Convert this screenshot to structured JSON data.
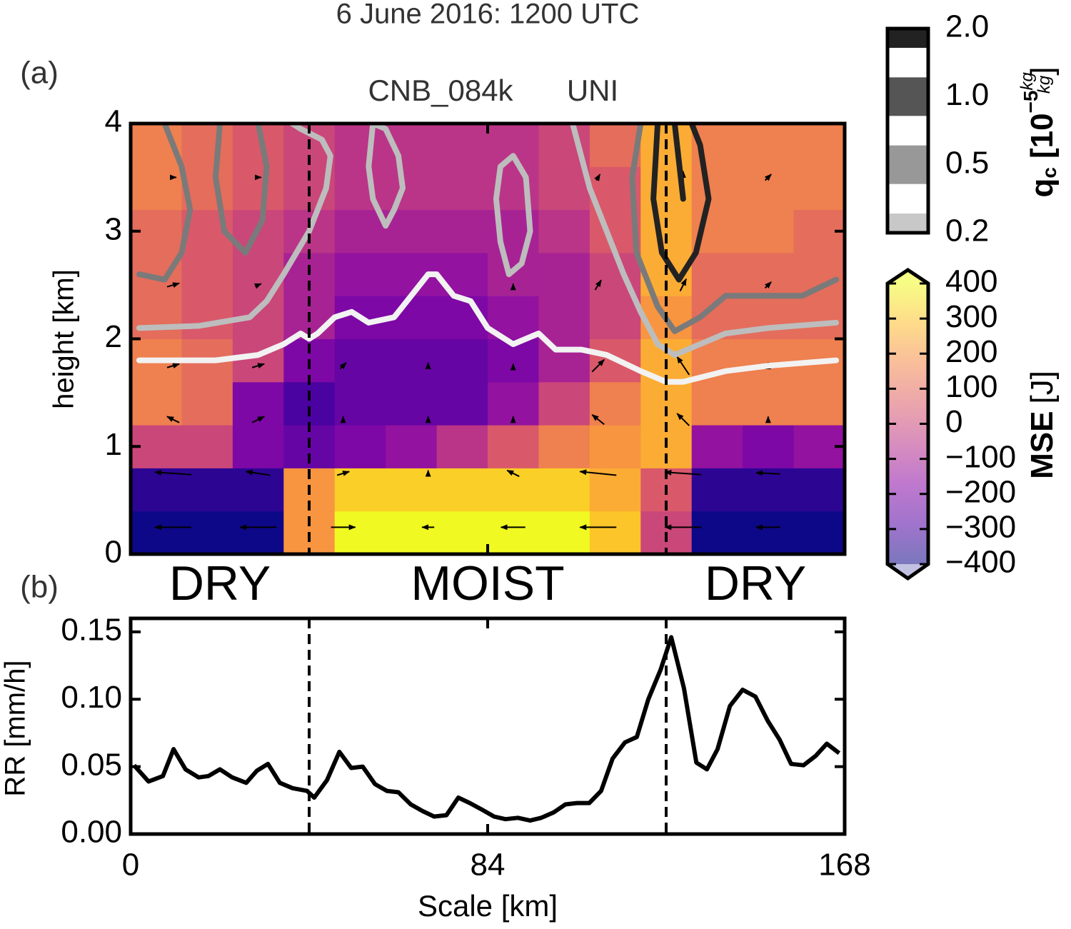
{
  "title": "6 June 2016: 1200 UTC",
  "chart_data": [
    {
      "type": "heatmap",
      "panel_label": "(a)",
      "title": "CNB_084k",
      "subtitle": "UNI",
      "ylabel": "height [km]",
      "xlim": [
        0,
        168
      ],
      "ylim": [
        0,
        4
      ],
      "xticks": [
        0,
        84,
        168
      ],
      "yticks": [
        0,
        1,
        2,
        3,
        4
      ],
      "boundaries": [
        42,
        126
      ],
      "region_labels": [
        "DRY",
        "MOIST",
        "DRY"
      ],
      "x_edges": [
        0,
        12,
        24,
        36,
        48,
        60,
        72,
        84,
        96,
        108,
        120,
        132,
        144,
        156,
        168
      ],
      "y_edges": [
        0,
        0.4,
        0.8,
        1.2,
        1.6,
        2.0,
        2.4,
        2.8,
        3.2,
        3.6,
        4.0
      ],
      "values": [
        [
          -400,
          -400,
          -400,
          200,
          400,
          400,
          400,
          400,
          400,
          300,
          0,
          -400,
          -400,
          -400
        ],
        [
          -350,
          -350,
          -350,
          200,
          320,
          320,
          320,
          320,
          320,
          250,
          50,
          -350,
          -350,
          -350
        ],
        [
          0,
          0,
          -200,
          -250,
          -200,
          -150,
          -50,
          50,
          150,
          200,
          250,
          -150,
          -200,
          -150
        ],
        [
          150,
          100,
          -200,
          -300,
          -250,
          -250,
          -250,
          -150,
          0,
          150,
          250,
          150,
          150,
          150
        ],
        [
          150,
          100,
          0,
          -200,
          -250,
          -250,
          -250,
          -200,
          -100,
          50,
          250,
          150,
          150,
          150
        ],
        [
          100,
          50,
          0,
          -100,
          -200,
          -200,
          -200,
          -150,
          -100,
          0,
          200,
          100,
          100,
          100
        ],
        [
          100,
          50,
          0,
          -100,
          -150,
          -150,
          -150,
          -100,
          -100,
          0,
          250,
          100,
          100,
          100
        ],
        [
          100,
          50,
          0,
          -50,
          -100,
          -100,
          -100,
          -100,
          -50,
          50,
          250,
          150,
          150,
          100
        ],
        [
          150,
          100,
          50,
          0,
          -50,
          -50,
          -50,
          -50,
          0,
          50,
          250,
          150,
          150,
          150
        ],
        [
          150,
          100,
          50,
          0,
          -50,
          -50,
          -50,
          -50,
          0,
          100,
          250,
          150,
          150,
          150
        ]
      ],
      "colormap": [
        "#0d0887",
        "#5302a3",
        "#8b0aa5",
        "#b83289",
        "#db5c68",
        "#f48849",
        "#febd2a",
        "#f0f921"
      ],
      "zlim": [
        -400,
        400
      ],
      "zticks": [
        {
          "value": -400,
          "label": "−400"
        },
        {
          "value": -300,
          "label": "−300"
        },
        {
          "value": -200,
          "label": "−200"
        },
        {
          "value": -100,
          "label": "−100"
        },
        0,
        100,
        200,
        300,
        400
      ],
      "zlabel": {
        "name": "MSE",
        "unit": "[J]"
      },
      "qc_colorbar": {
        "ticks": [
          0.2,
          0.5,
          {
            "value": 1,
            "label": "1.0"
          },
          {
            "value": 2,
            "label": "2.0"
          }
        ],
        "colors": [
          "#c8c8c8",
          "#989898",
          "#555555",
          "#222222"
        ],
        "label": {
          "symbol": "q",
          "subscript": "c",
          "open": "[10",
          "exponent": "−5",
          "numerator": "kg",
          "denominator": "kg",
          "close": "]"
        }
      },
      "contours": [
        {
          "level": 0,
          "color": "#f2f2f2",
          "x": [
            2,
            20,
            30,
            36,
            40,
            42,
            44,
            48,
            52,
            56,
            62,
            64,
            70,
            72,
            76,
            80,
            84,
            90,
            96,
            100,
            106,
            112,
            120,
            126,
            130,
            140,
            150,
            166
          ],
          "y": [
            1.8,
            1.8,
            1.85,
            1.95,
            2.05,
            2.0,
            2.05,
            2.2,
            2.25,
            2.15,
            2.2,
            2.3,
            2.6,
            2.6,
            2.4,
            2.35,
            2.1,
            1.95,
            2.05,
            1.9,
            1.9,
            1.85,
            1.7,
            1.6,
            1.6,
            1.7,
            1.75,
            1.8
          ]
        },
        {
          "level": 0.2,
          "color": "#bdbdbd",
          "x": [
            2,
            16,
            28,
            32,
            36,
            42,
            46,
            47,
            45,
            40,
            38,
            null,
            57,
            60,
            63,
            64,
            62,
            60,
            57,
            56,
            57,
            null,
            87,
            90,
            93,
            94,
            92,
            89,
            87,
            86,
            87,
            null,
            104,
            108,
            112,
            116,
            120,
            124,
            128,
            134,
            140,
            150,
            166
          ],
          "y": [
            2.1,
            2.12,
            2.2,
            2.35,
            2.6,
            3.0,
            3.4,
            3.7,
            3.85,
            3.95,
            4.0,
            null,
            4.0,
            3.95,
            3.7,
            3.4,
            3.2,
            3.05,
            3.3,
            3.6,
            4.0,
            null,
            3.6,
            3.7,
            3.5,
            3.0,
            2.7,
            2.6,
            2.9,
            3.3,
            3.6,
            null,
            4.0,
            3.4,
            3.0,
            2.6,
            2.25,
            1.95,
            1.85,
            1.95,
            2.05,
            2.1,
            2.15
          ]
        },
        {
          "level": 0.5,
          "color": "#7a7a7a",
          "x": [
            2,
            8,
            12,
            14,
            12,
            8,
            null,
            21,
            20,
            22,
            27,
            31,
            32,
            30,
            null,
            120,
            118,
            119,
            124,
            128,
            134,
            140,
            150,
            158,
            166
          ],
          "y": [
            2.6,
            2.55,
            2.8,
            3.2,
            3.6,
            4.0,
            null,
            4.0,
            3.5,
            3.0,
            2.8,
            3.1,
            3.6,
            4.0,
            null,
            4.0,
            3.5,
            2.8,
            2.3,
            2.07,
            2.2,
            2.4,
            2.4,
            2.4,
            2.55
          ]
        },
        {
          "level": 2,
          "color": "#222222",
          "x": [
            124,
            123,
            125,
            129,
            133,
            136,
            134,
            132,
            null,
            128,
            130
          ],
          "y": [
            4.0,
            3.3,
            2.8,
            2.55,
            2.8,
            3.3,
            3.8,
            4.0,
            null,
            4.0,
            3.3
          ]
        }
      ],
      "quiver": {
        "x": [
          10,
          30,
          50,
          70,
          90,
          110,
          130,
          150,
          10,
          30,
          50,
          70,
          90,
          110,
          130,
          150,
          10,
          30,
          50,
          70,
          90,
          110,
          130,
          150,
          10,
          30,
          50,
          70,
          90,
          110,
          130,
          150,
          10,
          30,
          50,
          70,
          90,
          110,
          130,
          150,
          10,
          30,
          50,
          70,
          90,
          110,
          130,
          150
        ],
        "y": [
          0.25,
          0.25,
          0.25,
          0.25,
          0.25,
          0.25,
          0.25,
          0.25,
          0.75,
          0.75,
          0.75,
          0.75,
          0.75,
          0.75,
          0.75,
          0.75,
          1.25,
          1.25,
          1.25,
          1.25,
          1.25,
          1.25,
          1.25,
          1.25,
          1.75,
          1.75,
          1.75,
          1.75,
          1.75,
          1.75,
          1.75,
          1.75,
          2.5,
          2.5,
          2.5,
          2.5,
          2.5,
          2.5,
          2.5,
          2.5,
          3.5,
          3.5,
          3.5,
          3.5,
          3.5,
          3.5,
          3.5,
          3.5
        ],
        "u": [
          -3,
          -3,
          2,
          -1,
          -2,
          -3,
          -3,
          -2,
          -3,
          -2,
          1,
          0,
          -1,
          -3,
          -3,
          -2,
          -1,
          1,
          0,
          0,
          0,
          -1,
          -1,
          0,
          1,
          1,
          0.5,
          0,
          0,
          1,
          -1,
          0,
          1,
          0.5,
          0,
          0,
          0,
          0.5,
          0.5,
          0.5,
          0.5,
          0.5,
          0,
          0,
          0,
          0.3,
          0,
          0.5
        ],
        "v": [
          0,
          0,
          0,
          0,
          0,
          0,
          0,
          0,
          0.2,
          0.3,
          0.3,
          0.5,
          0.5,
          0.3,
          0.2,
          0.1,
          0.5,
          0.5,
          0.5,
          0.5,
          0.5,
          0.8,
          1,
          0.5,
          0.3,
          0.3,
          0.5,
          0.5,
          0.3,
          1,
          1.5,
          0.5,
          0.3,
          0.2,
          0,
          0,
          0.2,
          0.8,
          1,
          0.5,
          0,
          0,
          0,
          0,
          0,
          0.5,
          1,
          0.5
        ]
      }
    },
    {
      "type": "line",
      "panel_label": "(b)",
      "xlabel": "Scale [km]",
      "ylabel": "RR [mm/h]",
      "xlim": [
        0,
        168
      ],
      "ylim": [
        0,
        0.16
      ],
      "xticks": [
        0,
        84,
        168
      ],
      "yticks": [
        {
          "value": 0,
          "label": "0.00"
        },
        0.05,
        {
          "value": 0.1,
          "label": "0.10"
        },
        0.15
      ],
      "boundaries": [
        42,
        126
      ],
      "color": "#000000",
      "x": [
        0.8,
        4.2,
        7.6,
        10.1,
        12.9,
        16.0,
        18.3,
        21.0,
        23.9,
        27.2,
        29.7,
        32.3,
        35.1,
        38.1,
        41.5,
        43.2,
        46.2,
        49.1,
        51.9,
        54.6,
        57.5,
        60.3,
        63.0,
        65.9,
        68.7,
        71.4,
        74.3,
        77.1,
        79.8,
        82.7,
        85.5,
        88.2,
        91.1,
        94.0,
        96.6,
        99.5,
        102.3,
        105.0,
        107.9,
        110.7,
        113.4,
        116.3,
        119.1,
        121.8,
        124.7,
        127.2,
        130.2,
        133.1,
        135.6,
        138.1,
        141.0,
        144.0,
        147.0,
        149.9,
        152.7,
        155.4,
        158.3,
        161.2,
        163.8,
        166.7
      ],
      "values": [
        0.051,
        0.039,
        0.043,
        0.063,
        0.048,
        0.042,
        0.043,
        0.048,
        0.042,
        0.038,
        0.047,
        0.052,
        0.038,
        0.034,
        0.032,
        0.027,
        0.04,
        0.061,
        0.049,
        0.05,
        0.037,
        0.032,
        0.031,
        0.022,
        0.017,
        0.013,
        0.014,
        0.027,
        0.023,
        0.018,
        0.013,
        0.011,
        0.012,
        0.01,
        0.012,
        0.016,
        0.022,
        0.023,
        0.023,
        0.032,
        0.056,
        0.068,
        0.072,
        0.1,
        0.122,
        0.146,
        0.108,
        0.053,
        0.048,
        0.063,
        0.095,
        0.107,
        0.102,
        0.084,
        0.07,
        0.052,
        0.051,
        0.058,
        0.067,
        0.06
      ]
    }
  ]
}
